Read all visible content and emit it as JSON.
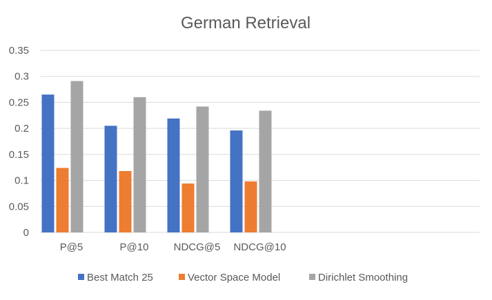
{
  "chart_data": {
    "type": "bar",
    "title": "German Retrieval",
    "xlabel": "",
    "ylabel": "",
    "categories": [
      "P@5",
      "P@10",
      "NDCG@5",
      "NDCG@10",
      "",
      "",
      ""
    ],
    "series": [
      {
        "name": "Best Match 25",
        "color": "#4472C4",
        "values": [
          0.265,
          0.205,
          0.219,
          0.196,
          null,
          null,
          null
        ]
      },
      {
        "name": "Vector Space Model",
        "color": "#ED7D31",
        "values": [
          0.124,
          0.118,
          0.094,
          0.098,
          null,
          null,
          null
        ]
      },
      {
        "name": "Dirichlet Smoothing",
        "color": "#A5A5A5",
        "values": [
          0.291,
          0.26,
          0.242,
          0.234,
          null,
          null,
          null
        ]
      }
    ],
    "ylim": [
      0,
      0.35
    ],
    "yticks": [
      0,
      0.05,
      0.1,
      0.15,
      0.2,
      0.25,
      0.3,
      0.35
    ],
    "ytick_labels": [
      "0",
      "0.05",
      "0.1",
      "0.15",
      "0.2",
      "0.25",
      "0.3",
      "0.35"
    ],
    "grid": true,
    "legend_position": "bottom"
  }
}
